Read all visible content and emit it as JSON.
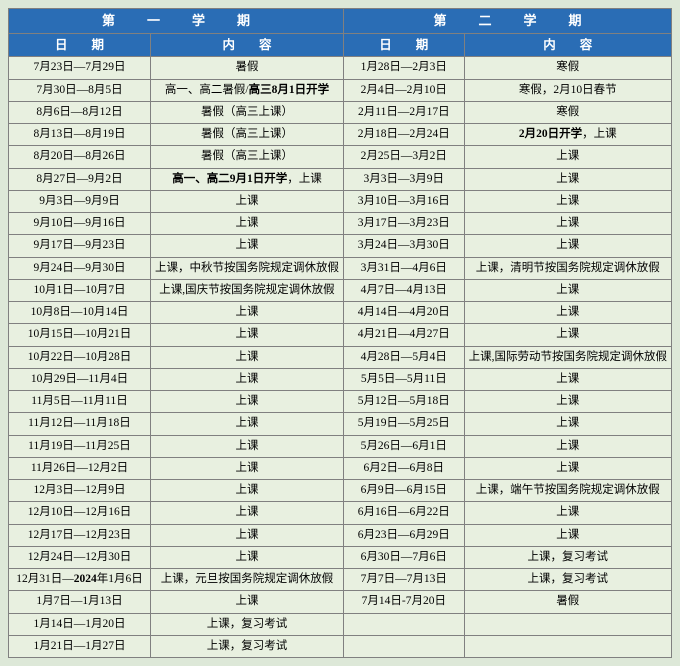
{
  "colors": {
    "header_bg": "#2a6db5",
    "header_fg": "#ffffff",
    "row_bg": "#e8f0e0",
    "border": "#808080"
  },
  "fontsize": {
    "header": 13,
    "subheader": 12.5,
    "cell": 11.5
  },
  "header": {
    "sem1": "第一学期",
    "sem2": "第二学期",
    "date": "日期",
    "content": "内容"
  },
  "rows": [
    {
      "d1": "7月23日—7月29日",
      "c1": "暑假",
      "d2": "1月28日—2月3日",
      "c2": "寒假"
    },
    {
      "d1": "7月30日—8月5日",
      "c1": "高一、高二暑假/",
      "c1b": "高三8月1日开学",
      "d2": "2月4日—2月10日",
      "c2": "寒假，2月10日春节"
    },
    {
      "d1": "8月6日—8月12日",
      "c1": "暑假（高三上课）",
      "d2": "2月11日—2月17日",
      "c2": "寒假"
    },
    {
      "d1": "8月13日—8月19日",
      "c1": "暑假（高三上课）",
      "d2": "2月18日—2月24日",
      "c2b": "2月20日开学",
      "c2": "，上课"
    },
    {
      "d1": "8月20日—8月26日",
      "c1": "暑假（高三上课）",
      "d2": "2月25日—3月2日",
      "c2": "上课"
    },
    {
      "d1": "8月27日—9月2日",
      "c1b": "高一、高二9月1日开学",
      "c1": "，上课",
      "d2": "3月3日—3月9日",
      "c2": "上课"
    },
    {
      "d1": "9月3日—9月9日",
      "c1": "上课",
      "d2": "3月10日—3月16日",
      "c2": "上课"
    },
    {
      "d1": "9月10日—9月16日",
      "c1": "上课",
      "d2": "3月17日—3月23日",
      "c2": "上课"
    },
    {
      "d1": "9月17日—9月23日",
      "c1": "上课",
      "d2": "3月24日—3月30日",
      "c2": "上课"
    },
    {
      "d1": "9月24日—9月30日",
      "c1": "上课，中秋节按国务院规定调休放假",
      "d2": "3月31日—4月6日",
      "c2": "上课，清明节按国务院规定调休放假"
    },
    {
      "d1": "10月1日—10月7日",
      "c1": "上课,国庆节按国务院规定调休放假",
      "d2": "4月7日—4月13日",
      "c2": "上课"
    },
    {
      "d1": "10月8日—10月14日",
      "c1": "上课",
      "d2": "4月14日—4月20日",
      "c2": "上课"
    },
    {
      "d1": "10月15日—10月21日",
      "c1": "上课",
      "d2": "4月21日—4月27日",
      "c2": "上课"
    },
    {
      "d1": "10月22日—10月28日",
      "c1": "上课",
      "d2": "4月28日—5月4日",
      "c2": "上课,国际劳动节按国务院规定调休放假"
    },
    {
      "d1": "10月29日—11月4日",
      "c1": "上课",
      "d2": "5月5日—5月11日",
      "c2": "上课"
    },
    {
      "d1": "11月5日—11月11日",
      "c1": "上课",
      "d2": "5月12日—5月18日",
      "c2": "上课"
    },
    {
      "d1": "11月12日—11月18日",
      "c1": "上课",
      "d2": "5月19日—5月25日",
      "c2": "上课"
    },
    {
      "d1": "11月19日—11月25日",
      "c1": "上课",
      "d2": "5月26日—6月1日",
      "c2": "上课"
    },
    {
      "d1": "11月26日—12月2日",
      "c1": "上课",
      "d2": "6月2日—6月8日",
      "c2": "上课"
    },
    {
      "d1": "12月3日—12月9日",
      "c1": "上课",
      "d2": "6月9日—6月15日",
      "c2": "上课，端午节按国务院规定调休放假"
    },
    {
      "d1": "12月10日—12月16日",
      "c1": "上课",
      "d2": "6月16日—6月22日",
      "c2": "上课"
    },
    {
      "d1": "12月17日—12月23日",
      "c1": "上课",
      "d2": "6月23日—6月29日",
      "c2": "上课"
    },
    {
      "d1": "12月24日—12月30日",
      "c1": "上课",
      "d2": "6月30日—7月6日",
      "c2": "上课，复习考试"
    },
    {
      "d1a": "12月31日—",
      "d1b": "2024",
      "d1c": "年1月6日",
      "c1": "上课，元旦按国务院规定调休放假",
      "d2": "7月7日—7月13日",
      "c2": "上课，复习考试"
    },
    {
      "d1": "1月7日—1月13日",
      "c1": "上课",
      "d2": "7月14日-7月20日",
      "c2": "暑假"
    },
    {
      "d1": "1月14日—1月20日",
      "c1": "上课，复习考试",
      "d2": "",
      "c2": ""
    },
    {
      "d1": "1月21日—1月27日",
      "c1": "上课，复习考试",
      "d2": "",
      "c2": ""
    }
  ]
}
